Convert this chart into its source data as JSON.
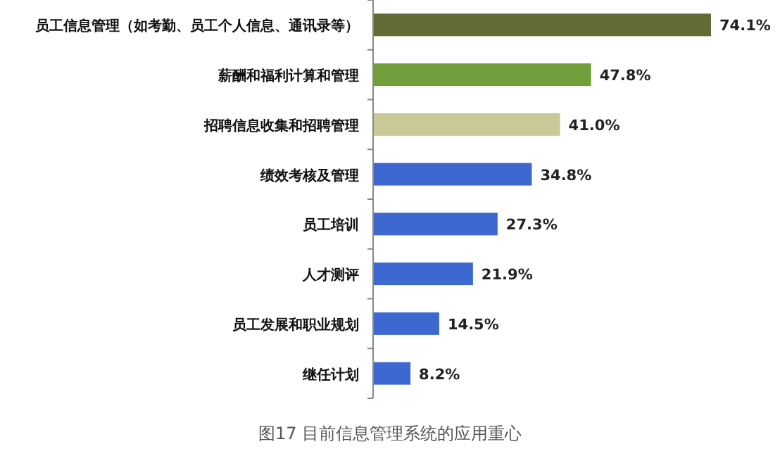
{
  "chart_data": {
    "type": "bar",
    "orientation": "horizontal",
    "title": "图17  目前信息管理系统的应用重心",
    "categories": [
      "员工信息管理（如考勤、员工个人信息、通讯录等）",
      "薪酬和福利计算和管理",
      "招聘信息收集和招聘管理",
      "绩效考核及管理",
      "员工培训",
      "人才测评",
      "员工发展和职业规划",
      "继任计划"
    ],
    "values": [
      74.1,
      47.8,
      41.0,
      34.8,
      27.3,
      21.9,
      14.5,
      8.2
    ],
    "value_labels": [
      "74.1%",
      "47.8%",
      "41.0%",
      "34.8%",
      "27.3%",
      "21.9%",
      "14.5%",
      "8.2%"
    ],
    "colors": [
      "#636b35",
      "#6f9e3a",
      "#c9c998",
      "#3d68cf",
      "#3d68cf",
      "#3d68cf",
      "#3d68cf",
      "#3d68cf"
    ]
  }
}
